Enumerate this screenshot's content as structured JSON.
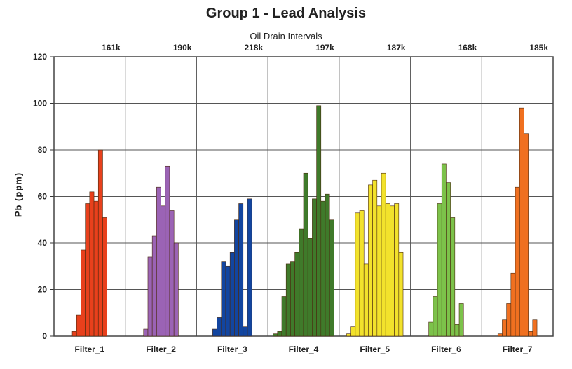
{
  "chart_data": {
    "type": "bar",
    "title": "Group 1 - Lead Analysis",
    "subtitle": "Oil Drain Intervals",
    "ylabel": "Pb (ppm)",
    "xlabel": "",
    "ylim": [
      0,
      120
    ],
    "yticks": [
      0,
      20,
      40,
      60,
      80,
      100,
      120
    ],
    "grid": true,
    "groups": [
      {
        "name": "Filter_1",
        "interval": "161k",
        "color": "#e8401c",
        "values": [
          2,
          9,
          37,
          57,
          62,
          58,
          80,
          51
        ]
      },
      {
        "name": "Filter_2",
        "interval": "190k",
        "color": "#9b63b5",
        "values": [
          3,
          34,
          43,
          64,
          56,
          73,
          54,
          40
        ]
      },
      {
        "name": "Filter_3",
        "interval": "218k",
        "color": "#1245a0",
        "values": [
          3,
          8,
          32,
          30,
          36,
          50,
          57,
          4,
          59
        ]
      },
      {
        "name": "Filter_4",
        "interval": "197k",
        "color": "#3f7a2a",
        "values": [
          1,
          2,
          17,
          31,
          32,
          36,
          46,
          70,
          42,
          59,
          99,
          58,
          61,
          50
        ]
      },
      {
        "name": "Filter_5",
        "interval": "187k",
        "color": "#f2e22c",
        "values": [
          1,
          4,
          53,
          54,
          31,
          65,
          67,
          56,
          70,
          57,
          56,
          57,
          36
        ]
      },
      {
        "name": "Filter_6",
        "interval": "168k",
        "color": "#7cc24a",
        "values": [
          6,
          17,
          57,
          74,
          66,
          51,
          5,
          14
        ]
      },
      {
        "name": "Filter_7",
        "interval": "185k",
        "color": "#f07020",
        "values": [
          1,
          7,
          14,
          27,
          64,
          98,
          87,
          2,
          7
        ]
      }
    ]
  }
}
